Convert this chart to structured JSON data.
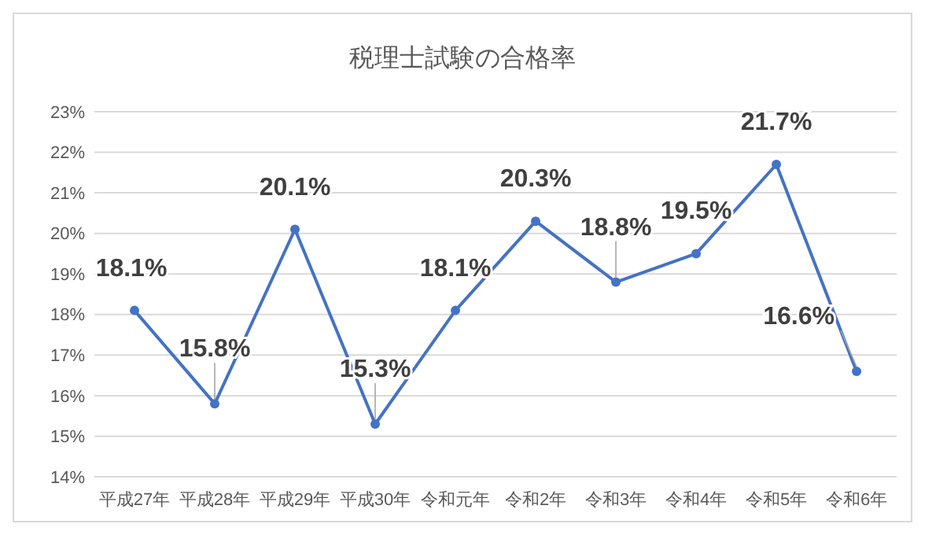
{
  "chart_data": {
    "type": "line",
    "title": "税理士試験の合格率",
    "categories": [
      "平成27年",
      "平成28年",
      "平成29年",
      "平成30年",
      "令和元年",
      "令和2年",
      "令和3年",
      "令和4年",
      "令和5年",
      "令和6年"
    ],
    "series": [
      {
        "color": "#4472c4",
        "values": [
          18.1,
          15.8,
          20.1,
          15.3,
          18.1,
          20.3,
          18.8,
          19.5,
          21.7,
          16.6
        ],
        "value_labels": [
          "18.1%",
          "15.8%",
          "20.1%",
          "15.3%",
          "18.1%",
          "20.3%",
          "18.8%",
          "19.5%",
          "21.7%",
          "16.6%"
        ]
      }
    ],
    "ylim": [
      14,
      23
    ],
    "yticks": [
      {
        "value": 14,
        "label": "14%"
      },
      {
        "value": 15,
        "label": "15%"
      },
      {
        "value": 16,
        "label": "16%"
      },
      {
        "value": 17,
        "label": "17%"
      },
      {
        "value": 18,
        "label": "18%"
      },
      {
        "value": 19,
        "label": "19%"
      },
      {
        "value": 20,
        "label": "20%"
      },
      {
        "value": 21,
        "label": "21%"
      },
      {
        "value": 22,
        "label": "22%"
      },
      {
        "value": 23,
        "label": "23%"
      }
    ],
    "grid": "y",
    "marker": "circle",
    "line_style": "solid"
  }
}
